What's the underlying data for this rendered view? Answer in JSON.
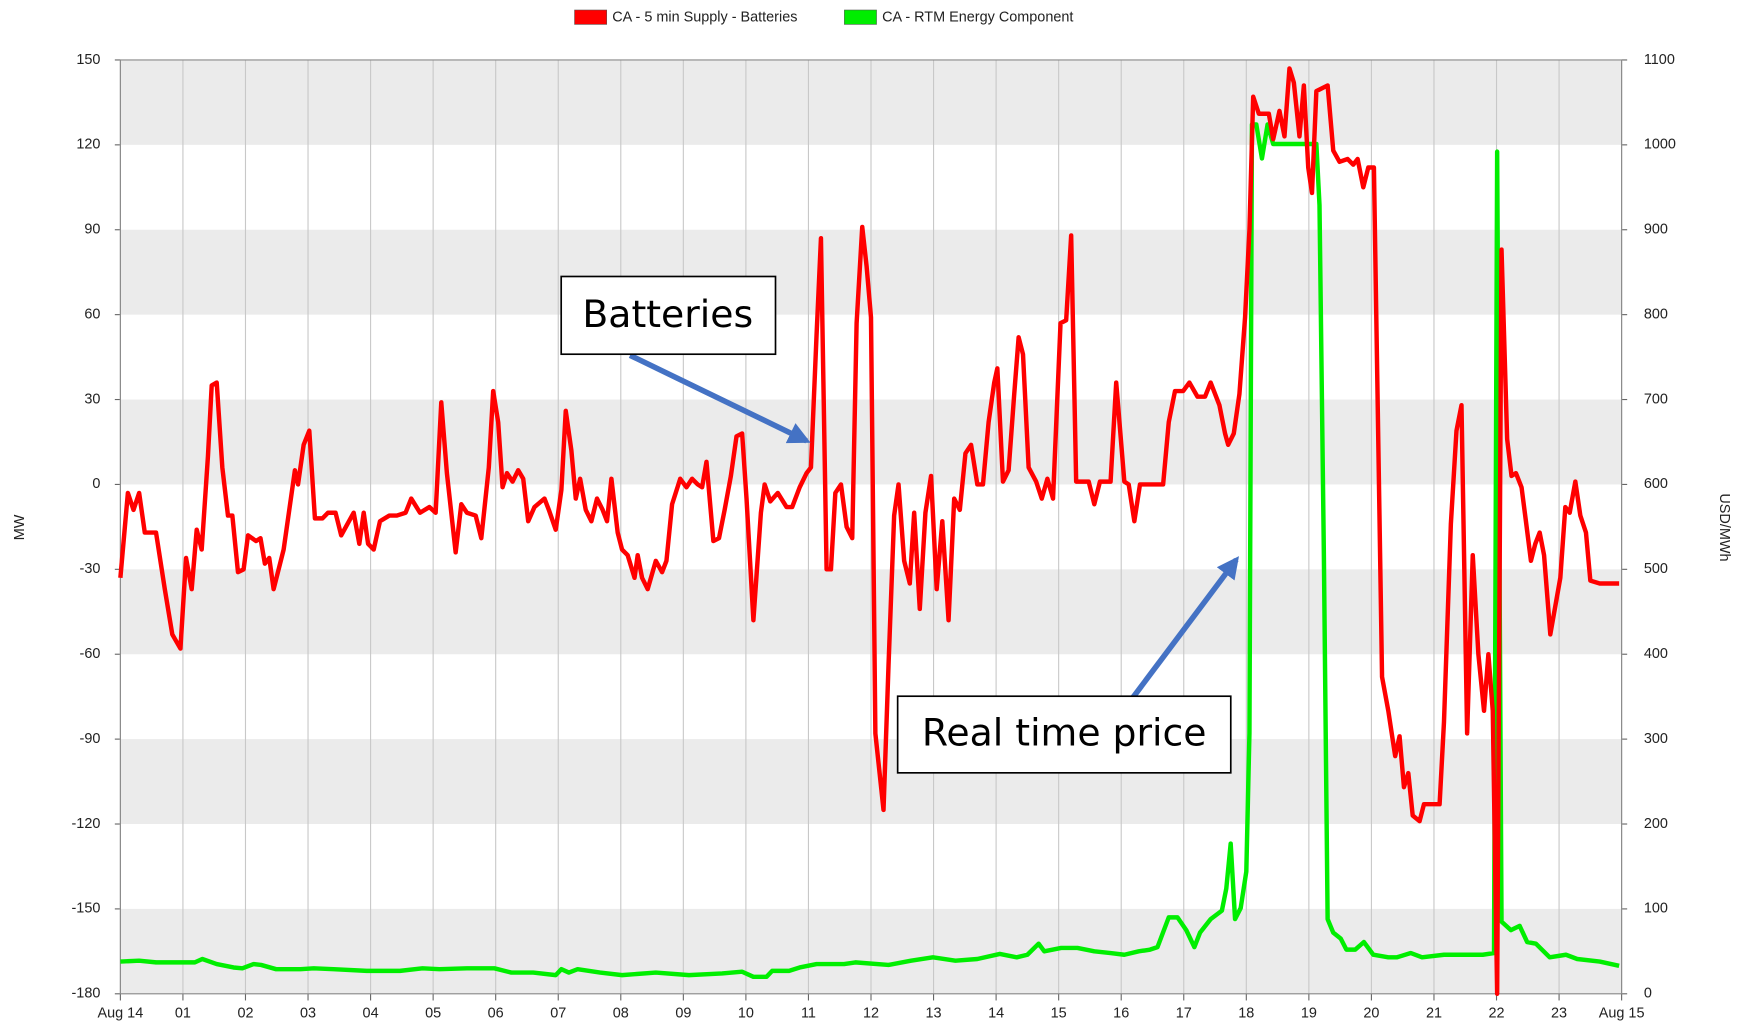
{
  "chart_data": {
    "type": "line",
    "xlabel": null,
    "ylabel": "MW",
    "y2label": "USD/MWh",
    "xlim": [
      0,
      24
    ],
    "xticks": [
      {
        "value": 0,
        "label": "Aug 14"
      },
      {
        "value": 1,
        "label": "01"
      },
      {
        "value": 2,
        "label": "02"
      },
      {
        "value": 3,
        "label": "03"
      },
      {
        "value": 4,
        "label": "04"
      },
      {
        "value": 5,
        "label": "05"
      },
      {
        "value": 6,
        "label": "06"
      },
      {
        "value": 7,
        "label": "07"
      },
      {
        "value": 8,
        "label": "08"
      },
      {
        "value": 9,
        "label": "09"
      },
      {
        "value": 10,
        "label": "10"
      },
      {
        "value": 11,
        "label": "11"
      },
      {
        "value": 12,
        "label": "12"
      },
      {
        "value": 13,
        "label": "13"
      },
      {
        "value": 14,
        "label": "14"
      },
      {
        "value": 15,
        "label": "15"
      },
      {
        "value": 16,
        "label": "16"
      },
      {
        "value": 17,
        "label": "17"
      },
      {
        "value": 18,
        "label": "18"
      },
      {
        "value": 19,
        "label": "19"
      },
      {
        "value": 20,
        "label": "20"
      },
      {
        "value": 21,
        "label": "21"
      },
      {
        "value": 22,
        "label": "22"
      },
      {
        "value": 23,
        "label": "23"
      },
      {
        "value": 24,
        "label": "Aug 15"
      }
    ],
    "ylim": [
      -180,
      150
    ],
    "yticks": [
      -180,
      -150,
      -120,
      -90,
      -60,
      -30,
      0,
      30,
      60,
      90,
      120,
      150
    ],
    "y2lim": [
      0,
      1100
    ],
    "y2ticks": [
      0,
      100,
      200,
      300,
      400,
      500,
      600,
      700,
      800,
      900,
      1000,
      1100
    ],
    "grid": true,
    "legend": "top",
    "annotations": [
      "Batteries",
      "Real time price"
    ],
    "series": [
      {
        "name": "CA - 5 min Supply - Batteries",
        "color": "#ff0000",
        "axis": "y",
        "x": [
          0,
          0.12,
          0.21,
          0.3,
          0.39,
          0.57,
          0.71,
          0.83,
          0.96,
          1.05,
          1.14,
          1.22,
          1.3,
          1.4,
          1.46,
          1.54,
          1.63,
          1.72,
          1.79,
          1.88,
          1.97,
          2.04,
          2.17,
          2.24,
          2.31,
          2.38,
          2.45,
          2.61,
          2.7,
          2.79,
          2.84,
          2.93,
          3.02,
          3.11,
          3.23,
          3.32,
          3.44,
          3.53,
          3.73,
          3.82,
          3.89,
          3.96,
          4.05,
          4.15,
          4.3,
          4.42,
          4.56,
          4.65,
          4.79,
          4.94,
          5.04,
          5.13,
          5.22,
          5.36,
          5.45,
          5.54,
          5.68,
          5.77,
          5.89,
          5.96,
          6.04,
          6.11,
          6.18,
          6.27,
          6.36,
          6.44,
          6.52,
          6.62,
          6.78,
          6.85,
          6.96,
          7.05,
          7.12,
          7.21,
          7.28,
          7.35,
          7.44,
          7.53,
          7.62,
          7.71,
          7.78,
          7.85,
          7.95,
          8.02,
          8.11,
          8.22,
          8.27,
          8.34,
          8.43,
          8.56,
          8.66,
          8.73,
          8.82,
          8.95,
          9.05,
          9.14,
          9.23,
          9.3,
          9.37,
          9.48,
          9.57,
          9.66,
          9.76,
          9.85,
          9.94,
          10.01,
          10.12,
          10.24,
          10.3,
          10.39,
          10.51,
          10.65,
          10.74,
          10.86,
          10.97,
          11.04,
          11.13,
          11.2,
          11.29,
          11.36,
          11.43,
          11.52,
          11.61,
          11.7,
          11.77,
          11.86,
          11.93,
          12.0,
          12.07,
          12.2,
          12.28,
          12.37,
          12.44,
          12.53,
          12.62,
          12.69,
          12.78,
          12.87,
          12.96,
          13.05,
          13.14,
          13.24,
          13.33,
          13.42,
          13.51,
          13.6,
          13.7,
          13.79,
          13.88,
          13.97,
          14.02,
          14.11,
          14.2,
          14.29,
          14.36,
          14.43,
          14.52,
          14.64,
          14.73,
          14.82,
          14.91,
          15.03,
          15.12,
          15.2,
          15.28,
          15.48,
          15.57,
          15.66,
          15.83,
          15.92,
          16.05,
          16.12,
          16.21,
          16.3,
          16.39,
          16.57,
          16.67,
          16.76,
          16.86,
          16.99,
          17.09,
          17.22,
          17.34,
          17.43,
          17.57,
          17.66,
          17.71,
          17.8,
          17.89,
          17.98,
          18.05,
          18.11,
          18.2,
          18.36,
          18.43,
          18.53,
          18.61,
          18.69,
          18.76,
          18.85,
          18.92,
          18.99,
          19.05,
          19.12,
          19.3,
          19.39,
          19.49,
          19.62,
          19.71,
          19.78,
          19.87,
          19.95,
          20.04,
          20.17,
          20.27,
          20.38,
          20.45,
          20.52,
          20.59,
          20.66,
          20.77,
          20.84,
          21.09,
          21.16,
          21.27,
          21.36,
          21.44,
          21.53,
          21.62,
          21.71,
          21.8,
          21.87,
          21.94,
          22.01,
          22.08,
          22.17,
          22.24,
          22.31,
          22.4,
          22.47,
          22.55,
          22.62,
          22.69,
          22.76,
          22.86,
          23.02,
          23.1,
          23.17,
          23.26,
          23.34,
          23.43,
          23.5,
          23.65,
          23.96
        ],
        "values": [
          -33,
          -3,
          -9,
          -3,
          -17,
          -17,
          -37,
          -53,
          -58,
          -26,
          -37,
          -16,
          -23,
          10,
          35,
          36,
          6,
          -11,
          -11,
          -31,
          -30,
          -18,
          -20,
          -19,
          -28,
          -26,
          -37,
          -23,
          -9,
          5,
          0,
          14,
          19,
          -12,
          -12,
          -10,
          -10,
          -18,
          -10,
          -21,
          -10,
          -21,
          -23,
          -13,
          -11,
          -11,
          -10,
          -5,
          -10,
          -8,
          -10,
          29,
          4,
          -24,
          -7,
          -10,
          -11,
          -19,
          6,
          33,
          22,
          -1,
          4,
          1,
          5,
          2,
          -13,
          -8,
          -5,
          -9,
          -16,
          -2,
          26,
          12,
          -5,
          2,
          -9,
          -13,
          -5,
          -9,
          -13,
          2,
          -17,
          -23,
          -25,
          -33,
          -25,
          -33,
          -37,
          -27,
          -31,
          -27,
          -7,
          2,
          -1,
          2,
          0,
          -1,
          8,
          -20,
          -19,
          -9,
          3,
          17,
          18,
          -5,
          -48,
          -10,
          0,
          -6,
          -3,
          -8,
          -8,
          -1,
          4,
          6,
          53,
          87,
          -30,
          -30,
          -3,
          0,
          -15,
          -19,
          57,
          91,
          77,
          59,
          -88,
          -115,
          -64,
          -11,
          0,
          -27,
          -35,
          -10,
          -44,
          -10,
          3,
          -37,
          -13,
          -48,
          -5,
          -9,
          11,
          14,
          0,
          0,
          22,
          36,
          41,
          1,
          5,
          32,
          52,
          46,
          6,
          1,
          -5,
          2,
          -5,
          57,
          58,
          88,
          1,
          1,
          -7,
          1,
          1,
          36,
          1,
          0,
          -13,
          0,
          0,
          0,
          0,
          22,
          33,
          33,
          36,
          31,
          31,
          36,
          28,
          18,
          14,
          18,
          32,
          59,
          90,
          137,
          131,
          131,
          122,
          132,
          123,
          147,
          142,
          123,
          141,
          112,
          103,
          139,
          141,
          118,
          114,
          115,
          113,
          115,
          105,
          112,
          112,
          -68,
          -80,
          -96,
          -89,
          -107,
          -102,
          -117,
          -119,
          -113,
          -113,
          -84,
          -14,
          19,
          28,
          -88,
          -25,
          -60,
          -80,
          -60,
          -80,
          -180,
          83,
          16,
          3,
          4,
          -1,
          -13,
          -27,
          -21,
          -17,
          -25,
          -53,
          -33,
          -8,
          -10,
          1,
          -11,
          -17,
          -34,
          -35,
          -35
        ]
      },
      {
        "name": "CA - RTM Energy Component",
        "color": "#00ee00",
        "axis": "y2",
        "x": [
          0,
          0.3,
          0.57,
          1.19,
          1.31,
          1.54,
          1.81,
          1.95,
          2.13,
          2.25,
          2.49,
          2.88,
          3.09,
          3.41,
          3.94,
          4.47,
          4.83,
          5.1,
          5.54,
          5.98,
          6.25,
          6.6,
          6.96,
          7.05,
          7.17,
          7.31,
          7.67,
          8.02,
          8.56,
          9.09,
          9.62,
          9.94,
          10.12,
          10.33,
          10.42,
          10.69,
          10.86,
          11.13,
          11.57,
          11.75,
          12.28,
          12.64,
          12.99,
          13.35,
          13.7,
          14.06,
          14.33,
          14.5,
          14.68,
          14.77,
          15.04,
          15.3,
          15.57,
          15.83,
          16.05,
          16.28,
          16.46,
          16.58,
          16.76,
          16.9,
          17.04,
          17.17,
          17.26,
          17.43,
          17.61,
          17.68,
          17.75,
          17.82,
          17.91,
          18.0,
          18.05,
          18.09,
          18.16,
          18.25,
          18.34,
          18.43,
          19.03,
          19.12,
          19.17,
          19.24,
          19.3,
          19.39,
          19.51,
          19.6,
          19.74,
          19.88,
          20.03,
          20.27,
          20.41,
          20.63,
          20.81,
          21.16,
          21.52,
          21.78,
          21.96,
          22.01,
          22.08,
          22.23,
          22.37,
          22.49,
          22.63,
          22.85,
          23.11,
          23.29,
          23.65,
          23.96
        ],
        "values": [
          38,
          39,
          37,
          37,
          41,
          35,
          31,
          30,
          35,
          34,
          29,
          29,
          30,
          29,
          27,
          27,
          30,
          29,
          30,
          30,
          25,
          25,
          22,
          29,
          25,
          29,
          25,
          22,
          25,
          22,
          24,
          26,
          20,
          20,
          27,
          27,
          31,
          35,
          35,
          37,
          34,
          39,
          43,
          39,
          41,
          47,
          43,
          46,
          59,
          50,
          54,
          54,
          50,
          48,
          46,
          50,
          52,
          55,
          90,
          90,
          75,
          55,
          72,
          88,
          98,
          124,
          177,
          88,
          101,
          144,
          307,
          1024,
          1024,
          984,
          1024,
          1001,
          1001,
          1001,
          929,
          517,
          88,
          72,
          65,
          52,
          52,
          61,
          46,
          43,
          43,
          48,
          43,
          46,
          46,
          46,
          48,
          992,
          85,
          75,
          80,
          61,
          59,
          43,
          46,
          41,
          38,
          33
        ]
      }
    ]
  }
}
